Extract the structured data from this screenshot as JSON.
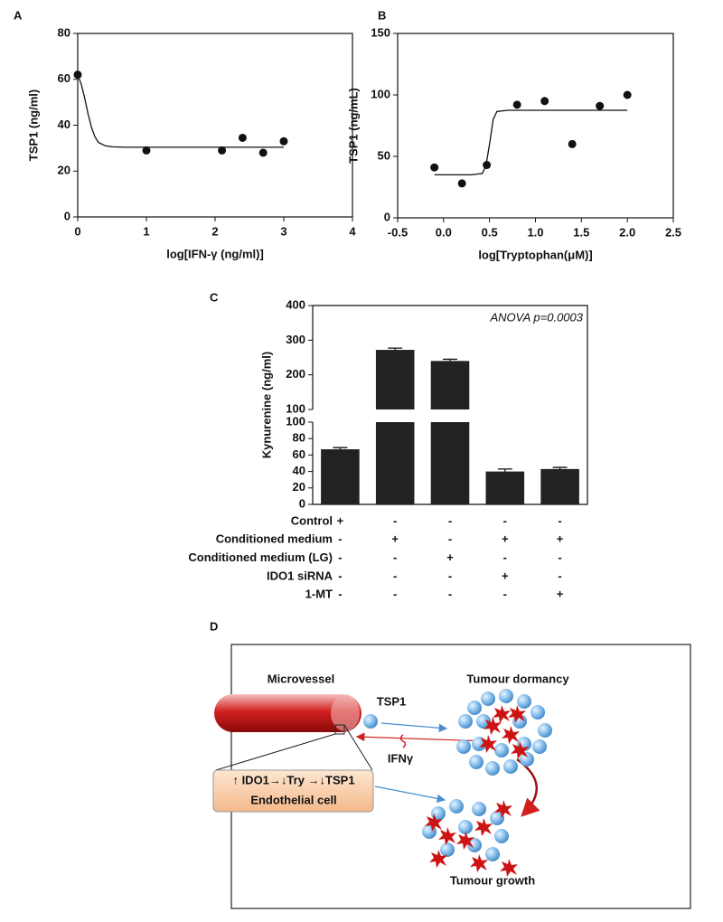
{
  "chart_data": [
    {
      "type": "scatter",
      "panel": "A",
      "xlabel": "log[IFN-γ (ng/ml)]",
      "ylabel": "TSP1 (ng/ml)",
      "xlim": [
        0,
        4
      ],
      "xticks": [
        0,
        1,
        2,
        3,
        4
      ],
      "ylim": [
        0,
        80
      ],
      "yticks": [
        0,
        20,
        40,
        60,
        80
      ],
      "color": "#111111",
      "points": {
        "x": [
          0,
          1,
          2.1,
          2.4,
          2.7,
          3
        ],
        "values": [
          62,
          29,
          29,
          34.5,
          28,
          33
        ]
      },
      "fit": {
        "x": [
          0,
          0.05,
          0.1,
          0.15,
          0.2,
          0.25,
          0.3,
          0.4,
          0.5,
          0.7,
          1,
          2,
          3
        ],
        "values": [
          62,
          58,
          52,
          45,
          39,
          35,
          32.5,
          31,
          30.6,
          30.4,
          30.4,
          30.4,
          30.4
        ]
      }
    },
    {
      "type": "scatter",
      "panel": "B",
      "xlabel": "log[Tryptophan(μM)]",
      "ylabel": "TSP1 (ng/mL)",
      "xlim": [
        -0.5,
        2.5
      ],
      "xticks": [
        -0.5,
        {
          "value": 0,
          "label": "0.0"
        },
        0.5,
        {
          "value": 1,
          "label": "1.0"
        },
        1.5,
        {
          "value": 2,
          "label": "2.0"
        },
        2.5
      ],
      "ylim": [
        0,
        150
      ],
      "yticks": [
        0,
        50,
        100,
        150
      ],
      "color": "#111111",
      "points": {
        "x": [
          -0.1,
          0.2,
          0.47,
          0.8,
          1.1,
          1.4,
          1.7,
          2.0
        ],
        "values": [
          41,
          28,
          43,
          92,
          95,
          60,
          91,
          100
        ]
      },
      "fit": {
        "x": [
          -0.1,
          0.3,
          0.42,
          0.46,
          0.5,
          0.54,
          0.58,
          0.7,
          1,
          2
        ],
        "values": [
          35,
          35,
          36,
          42,
          60,
          80,
          86.5,
          87.5,
          87.5,
          87.5
        ]
      }
    },
    {
      "type": "bar",
      "panel": "C",
      "ylabel": "Kynurenine (ng/ml)",
      "annotation": "ANOVA p=0.0003",
      "color": "#222222",
      "values": [
        67,
        272,
        240,
        40,
        43
      ],
      "errors": [
        2,
        5,
        5,
        3,
        2
      ],
      "segments": [
        {
          "ylim": [
            0,
            100
          ],
          "yticks": [
            0,
            20,
            40,
            60,
            80,
            100
          ]
        },
        {
          "ylim": [
            100,
            400
          ],
          "yticks": [
            100,
            200,
            300,
            400
          ]
        }
      ],
      "conditions": [
        {
          "label": "Control",
          "signs": [
            "+",
            "-",
            "-",
            "-",
            "-"
          ]
        },
        {
          "label": "Conditioned medium",
          "signs": [
            "-",
            "+",
            "-",
            "+",
            "+"
          ]
        },
        {
          "label": "Conditioned medium (LG)",
          "signs": [
            "-",
            "-",
            "+",
            "-",
            "-"
          ]
        },
        {
          "label": "IDO1 siRNA",
          "signs": [
            "-",
            "-",
            "-",
            "+",
            "-"
          ]
        },
        {
          "label": "1-MT",
          "signs": [
            "-",
            "-",
            "-",
            "-",
            "+"
          ]
        }
      ]
    }
  ],
  "diagram": {
    "panel": "D",
    "microvessel": "Microvessel",
    "dormancy": "Tumour dormancy",
    "tsp1": "TSP1",
    "ifn": "IFNγ",
    "pathway": "↑ IDO1→↓Try →↓TSP1",
    "cell": "Endothelial cell",
    "growth": "Tumour growth"
  }
}
